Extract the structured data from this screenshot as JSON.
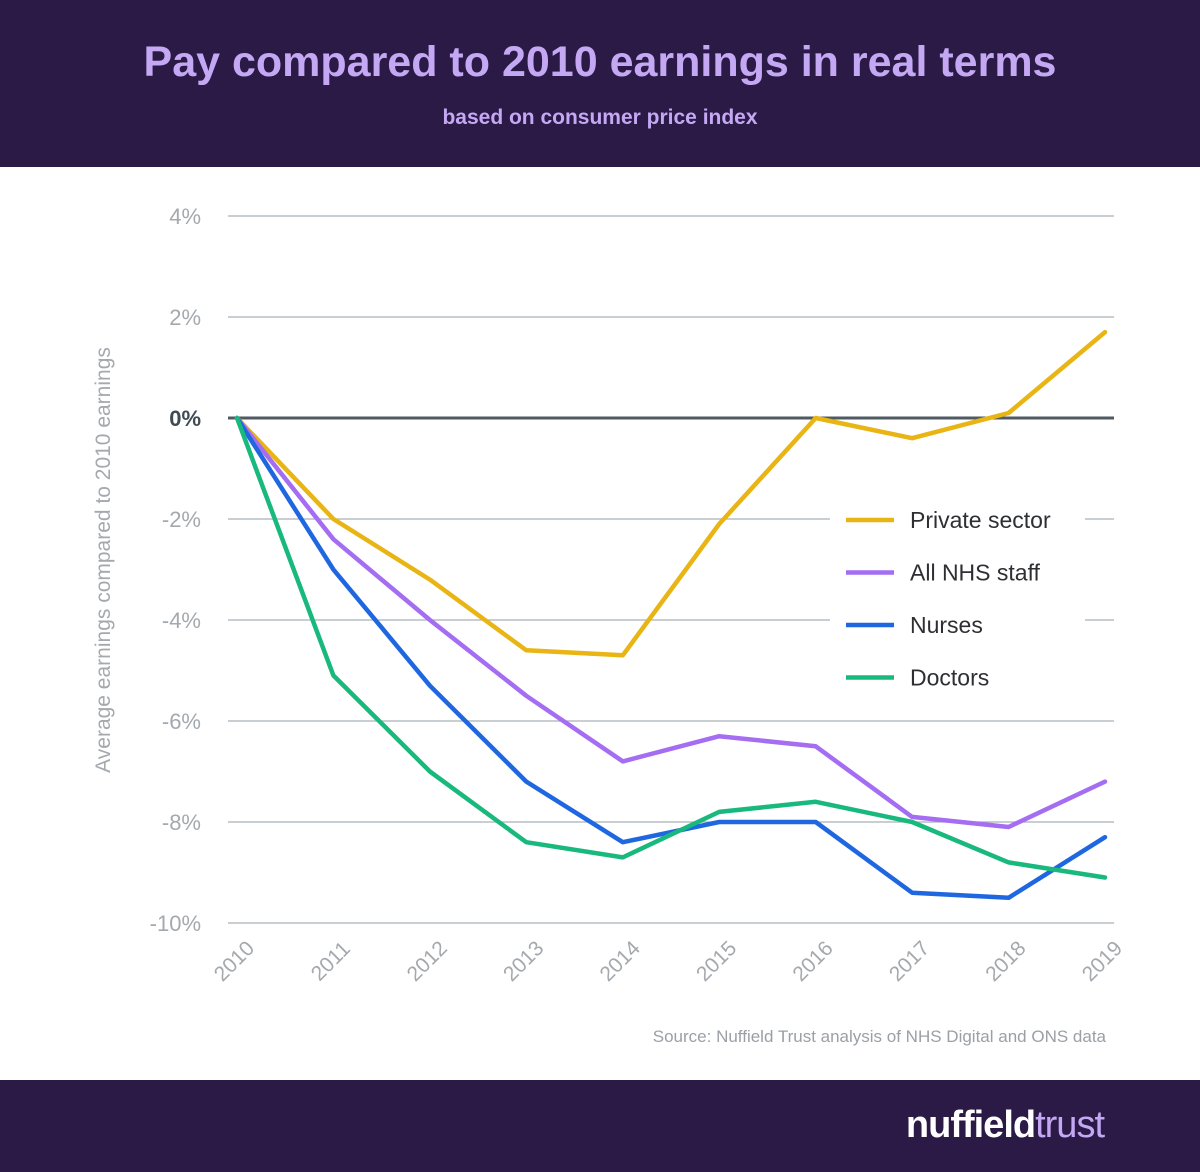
{
  "header": {
    "title": "Pay compared to 2010 earnings in real terms",
    "subtitle": "based on consumer price index"
  },
  "footer": {
    "source": "Source: Nuffield Trust analysis of NHS Digital and ONS data",
    "brand_part1": "nuffield",
    "brand_part2": "trust"
  },
  "colors": {
    "background_band": "#2a1a45",
    "title": "#c5a8f4",
    "private_sector": "#e8b514",
    "all_nhs_staff": "#a46df2",
    "nurses": "#1f67e0",
    "doctors": "#19b97e"
  },
  "chart_data": {
    "type": "line",
    "title": "",
    "xlabel": "",
    "ylabel": "Average earnings compared to 2010 earnings",
    "x": [
      "2010",
      "2011",
      "2012",
      "2013",
      "2014",
      "2015",
      "2016",
      "2017",
      "2018",
      "2019"
    ],
    "ylim": [
      -10,
      4
    ],
    "yticks": [
      4,
      2,
      0,
      -2,
      -4,
      -6,
      -8,
      -10
    ],
    "ytick_labels": [
      "4%",
      "2%",
      "0%",
      "-2%",
      "-4%",
      "-6%",
      "-8%",
      "-10%"
    ],
    "grid": true,
    "legend_position": "right",
    "series": [
      {
        "name": "Private sector",
        "color": "#e8b514",
        "values": [
          0,
          -2.0,
          -3.2,
          -4.6,
          -4.7,
          -2.1,
          0.0,
          -0.4,
          0.1,
          1.7
        ]
      },
      {
        "name": "All NHS staff",
        "color": "#a46df2",
        "values": [
          0,
          -2.4,
          -4.0,
          -5.5,
          -6.8,
          -6.3,
          -6.5,
          -7.9,
          -8.1,
          -7.2
        ]
      },
      {
        "name": "Nurses",
        "color": "#1f67e0",
        "values": [
          0,
          -3.0,
          -5.3,
          -7.2,
          -8.4,
          -8.0,
          -8.0,
          -9.4,
          -9.5,
          -8.3
        ]
      },
      {
        "name": "Doctors",
        "color": "#19b97e",
        "values": [
          0,
          -5.1,
          -7.0,
          -8.4,
          -8.7,
          -7.8,
          -7.6,
          -8.0,
          -8.8,
          -9.1
        ]
      }
    ]
  }
}
